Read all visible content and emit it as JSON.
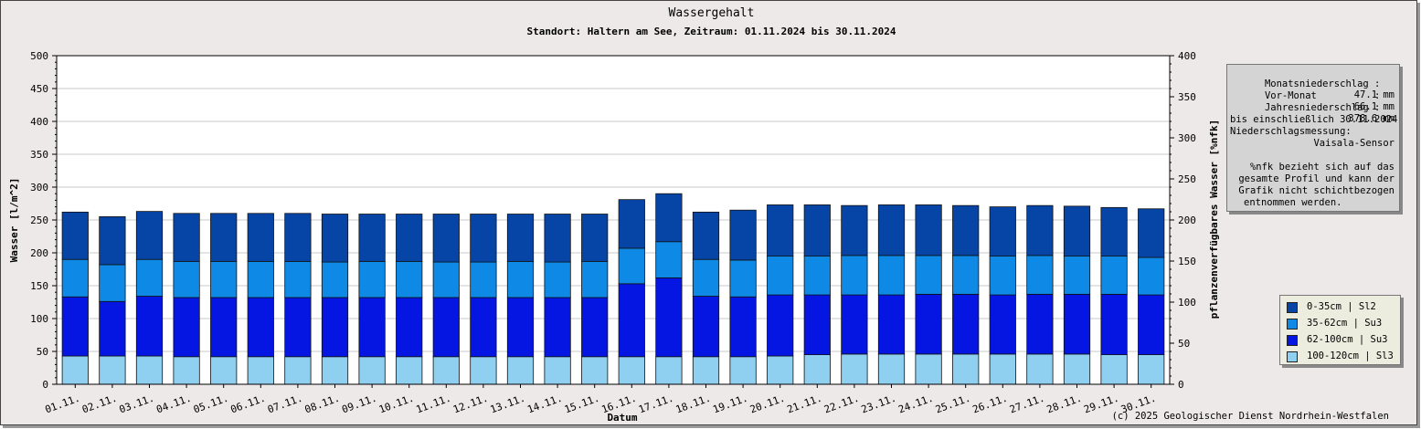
{
  "title": "Wassergehalt",
  "subtitle": "Standort: Haltern am See, Zeitraum: 01.11.2024 bis 30.11.2024",
  "copyright": "(c) 2025 Geologischer Dienst Nordrhein-Westfalen",
  "infobox": {
    "monthly_label": "Monatsniederschlag :",
    "monthly_value": "47.1 mm",
    "prev_label": "Vor-Monat          :",
    "prev_value": "66.1 mm",
    "annual_label": "Jahresniederschlag :",
    "annual_value": "378.6 mm",
    "until": "bis einschließlich 30.11.2024",
    "measurement_label": "Niederschlagsmessung:",
    "sensor": "Vaisala-Sensor",
    "note_1": "%nfk bezieht sich auf das",
    "note_2": "gesamte Profil und kann der",
    "note_3": "Grafik nicht schichtbezogen",
    "note_4": "entnommen werden."
  },
  "colors": {
    "layer_0_35": "#0645a6",
    "layer_35_62": "#0e8ae6",
    "layer_62_100": "#0616e2",
    "layer_100_120": "#8fcff0",
    "plot_background": "#ffffff",
    "frame_background": "#ece9e8"
  },
  "chart_data": {
    "type": "bar",
    "stacked": true,
    "xlabel": "Datum",
    "ylabel": "Wasser [l/m^2]",
    "y2label": "pflanzenverfügbares Wasser [%nfk]",
    "ylim": [
      0,
      500
    ],
    "y2lim": [
      0,
      400
    ],
    "yticks": [
      0,
      50,
      100,
      150,
      200,
      250,
      300,
      350,
      400,
      450,
      500
    ],
    "y2ticks": [
      0,
      50,
      100,
      150,
      200,
      250,
      300,
      350,
      400
    ],
    "grid": true,
    "legend_position": "right",
    "categories": [
      "01.11.",
      "02.11.",
      "03.11.",
      "04.11.",
      "05.11.",
      "06.11.",
      "07.11.",
      "08.11.",
      "09.11.",
      "10.11.",
      "11.11.",
      "12.11.",
      "13.11.",
      "14.11.",
      "15.11.",
      "16.11.",
      "17.11.",
      "18.11.",
      "19.11.",
      "20.11.",
      "21.11.",
      "22.11.",
      "23.11.",
      "24.11.",
      "25.11.",
      "26.11.",
      "27.11.",
      "28.11.",
      "29.11.",
      "30.11."
    ],
    "series": [
      {
        "name": "100-120cm | Sl3",
        "color": "#8fcff0",
        "values": [
          43,
          43,
          43,
          42,
          42,
          42,
          42,
          42,
          42,
          42,
          42,
          42,
          42,
          42,
          42,
          42,
          42,
          42,
          42,
          43,
          45,
          46,
          46,
          46,
          46,
          46,
          46,
          46,
          45,
          45
        ]
      },
      {
        "name": "62-100cm | Su3",
        "color": "#0616e2",
        "values": [
          90,
          83,
          91,
          90,
          90,
          90,
          90,
          90,
          90,
          90,
          90,
          90,
          90,
          90,
          90,
          111,
          120,
          92,
          91,
          93,
          91,
          90,
          90,
          91,
          91,
          90,
          91,
          91,
          92,
          91
        ]
      },
      {
        "name": "35-62cm | Su3",
        "color": "#0e8ae6",
        "values": [
          57,
          56,
          56,
          55,
          55,
          55,
          55,
          54,
          55,
          55,
          54,
          54,
          55,
          54,
          55,
          54,
          55,
          56,
          56,
          59,
          59,
          60,
          60,
          59,
          59,
          59,
          59,
          58,
          58,
          57
        ]
      },
      {
        "name": "0-35cm | Sl2",
        "color": "#0645a6",
        "values": [
          72,
          73,
          73,
          73,
          73,
          73,
          73,
          73,
          72,
          72,
          73,
          73,
          72,
          73,
          72,
          74,
          73,
          72,
          76,
          78,
          78,
          76,
          77,
          77,
          76,
          75,
          76,
          76,
          74,
          74
        ]
      }
    ]
  }
}
